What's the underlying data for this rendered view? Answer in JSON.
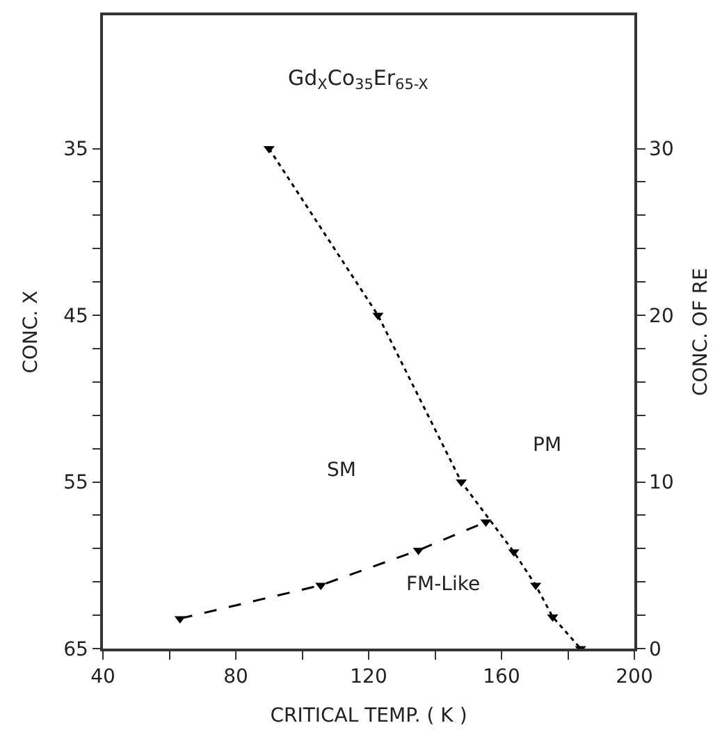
{
  "chart_data": {
    "type": "line",
    "xlabel": "CRITICAL TEMP. ( K )",
    "ylabel": "CONC. X",
    "y2label": "CONC. OF RE",
    "annotations": [
      "Gd$_{X}$Co$_{35}$Er$_{65-X}$",
      "SM",
      "PM",
      "FM-Like"
    ],
    "series": [
      {
        "color": "#000000",
        "line_style": "dotted",
        "x": [
          90,
          122.8,
          147.9,
          163.7,
          170.3,
          175.4,
          183.8
        ],
        "values": [
          35,
          45,
          55,
          59.2,
          61.2,
          63.1,
          65
        ]
      },
      {
        "color": "#000000",
        "line_style": "dashed",
        "x": [
          63.2,
          105.6,
          135,
          155.3
        ],
        "values": [
          63.2,
          61.2,
          59.1,
          57.4
        ]
      }
    ],
    "marker": "triangle",
    "xlim": [
      40,
      200
    ],
    "xticks": [
      40,
      {
        "value": 60,
        "label": null
      },
      80,
      {
        "value": 100,
        "label": null
      },
      120,
      {
        "value": 140,
        "label": null
      },
      160,
      {
        "value": 180,
        "label": null
      },
      200
    ],
    "ylim": [
      65,
      27
    ],
    "yticks": [
      35,
      {
        "value": 37,
        "label": null
      },
      {
        "value": 39,
        "label": null
      },
      {
        "value": 41,
        "label": null
      },
      {
        "value": 43,
        "label": null
      },
      45,
      {
        "value": 47,
        "label": null
      },
      {
        "value": 49,
        "label": null
      },
      {
        "value": 51,
        "label": null
      },
      {
        "value": 53,
        "label": null
      },
      55,
      {
        "value": 57,
        "label": null
      },
      {
        "value": 59,
        "label": null
      },
      {
        "value": 61,
        "label": null
      },
      {
        "value": 63,
        "label": null
      },
      65
    ],
    "y2lim": [
      0,
      38
    ],
    "y2ticks": [
      0,
      {
        "value": 2,
        "label": null
      },
      {
        "value": 4,
        "label": null
      },
      {
        "value": 6,
        "label": null
      },
      {
        "value": 8,
        "label": null
      },
      10,
      {
        "value": 12,
        "label": null
      },
      {
        "value": 14,
        "label": null
      },
      {
        "value": 16,
        "label": null
      },
      {
        "value": 18,
        "label": null
      },
      20,
      {
        "value": 22,
        "label": null
      },
      {
        "value": 24,
        "label": null
      },
      {
        "value": 26,
        "label": null
      },
      {
        "value": 28,
        "label": null
      },
      30
    ]
  }
}
